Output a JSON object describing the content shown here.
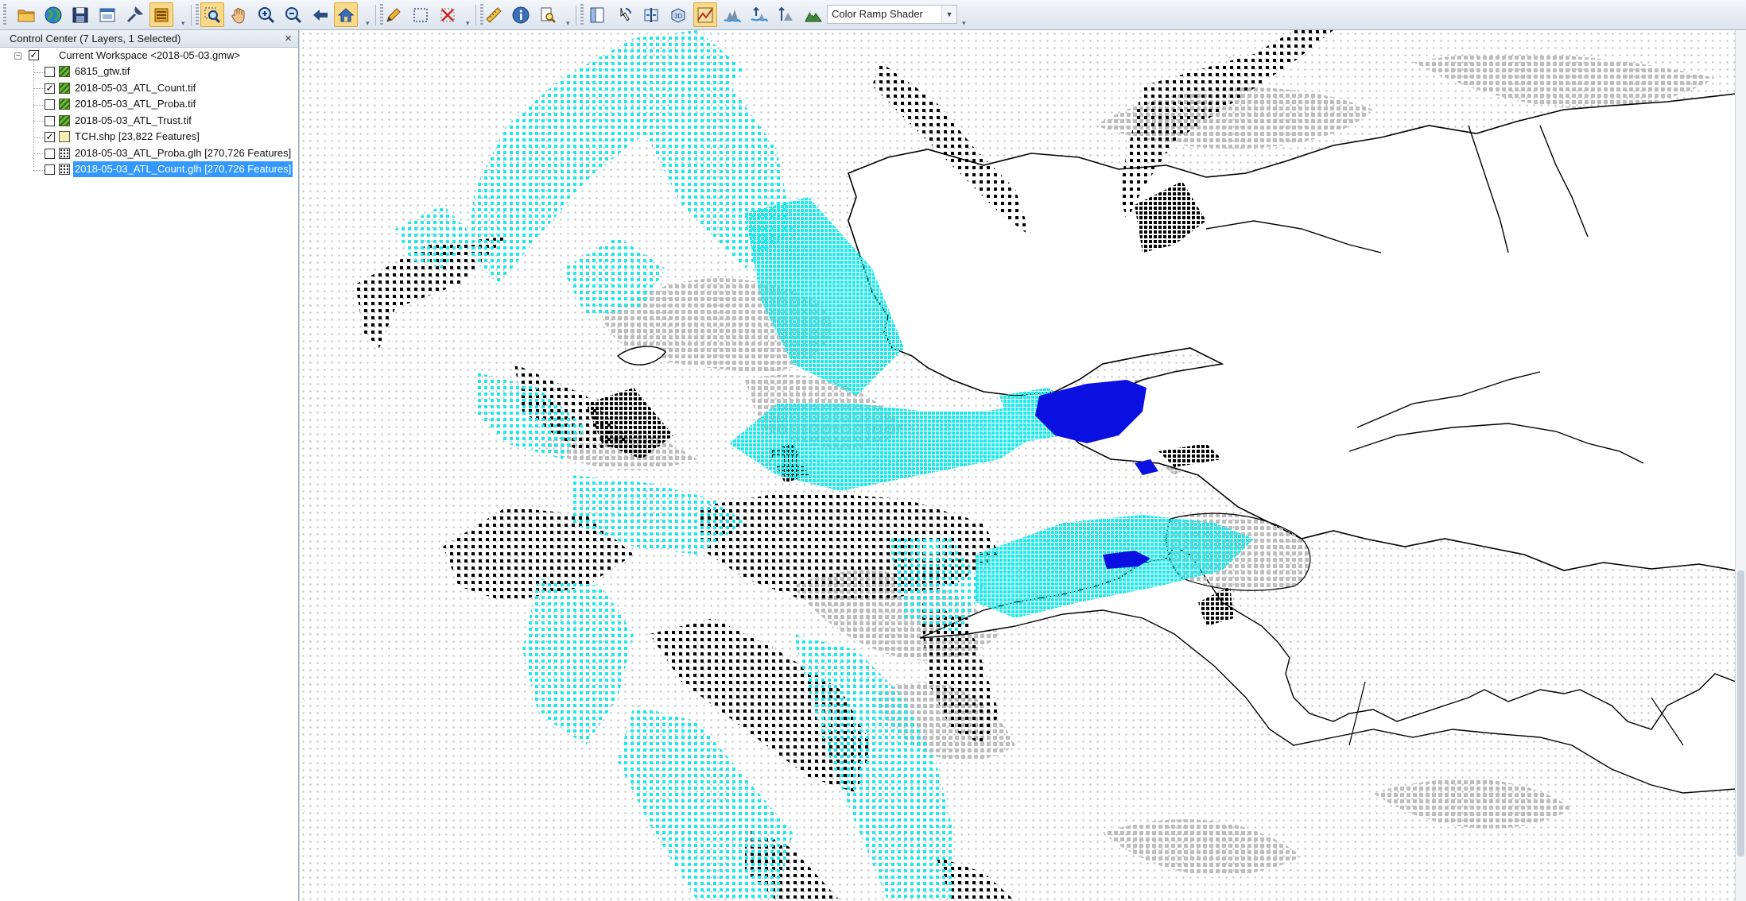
{
  "toolbar": {
    "shader_value": "Color Ramp Shader",
    "buttons": [
      {
        "icon": "open-folder-icon",
        "tip": ""
      },
      {
        "icon": "globe-icon",
        "tip": ""
      },
      {
        "icon": "save-icon",
        "tip": ""
      },
      {
        "icon": "window-icon",
        "tip": ""
      },
      {
        "icon": "wrench-icon",
        "tip": ""
      },
      {
        "icon": "layers-icon",
        "tip": ""
      },
      {
        "icon": "zoom-box-icon",
        "tip": ""
      },
      {
        "icon": "pan-hand-icon",
        "tip": ""
      },
      {
        "icon": "zoom-in-icon",
        "tip": ""
      },
      {
        "icon": "zoom-out-icon",
        "tip": ""
      },
      {
        "icon": "back-arrow-icon",
        "tip": ""
      },
      {
        "icon": "home-icon",
        "tip": ""
      },
      {
        "icon": "pencil-icon",
        "tip": ""
      },
      {
        "icon": "select-rect-icon",
        "tip": ""
      },
      {
        "icon": "delete-x-icon",
        "tip": ""
      },
      {
        "icon": "ruler-icon",
        "tip": ""
      },
      {
        "icon": "info-icon",
        "tip": ""
      },
      {
        "icon": "search-page-icon",
        "tip": ""
      },
      {
        "icon": "panel-icon",
        "tip": ""
      },
      {
        "icon": "hand-pointer-icon",
        "tip": ""
      },
      {
        "icon": "split-view-icon",
        "tip": ""
      },
      {
        "icon": "3d-view-icon",
        "tip": ""
      },
      {
        "icon": "path-profile-icon",
        "tip": ""
      },
      {
        "icon": "water-icon",
        "tip": ""
      },
      {
        "icon": "water-rise-icon",
        "tip": ""
      },
      {
        "icon": "viewshed-icon",
        "tip": ""
      },
      {
        "icon": "terrain-icon",
        "tip": ""
      }
    ]
  },
  "control_center": {
    "title": "Control Center (7 Layers, 1 Selected)",
    "close_glyph": "×",
    "workspace": {
      "label": "Current Workspace <2018-05-03.gmw>",
      "checked": true
    },
    "layers": [
      {
        "name": "6815_gtw.tif",
        "checked": false,
        "type": "raster",
        "selected": false
      },
      {
        "name": "2018-05-03_ATL_Count.tif",
        "checked": true,
        "type": "raster",
        "selected": false
      },
      {
        "name": "2018-05-03_ATL_Proba.tif",
        "checked": false,
        "type": "raster",
        "selected": false
      },
      {
        "name": "2018-05-03_ATL_Trust.tif",
        "checked": false,
        "type": "raster",
        "selected": false
      },
      {
        "name": "TCH.shp [23,822 Features]",
        "checked": true,
        "type": "vector",
        "selected": false
      },
      {
        "name": "2018-05-03_ATL_Proba.glh [270,726 Features]",
        "checked": false,
        "type": "glh",
        "selected": false
      },
      {
        "name": "2018-05-03_ATL_Count.glh [270,726 Features]",
        "checked": false,
        "type": "glh",
        "selected": true
      }
    ]
  },
  "map": {
    "colors": {
      "background": "#ffffff",
      "sparse_dots": "#c6c6c6",
      "land_fill": "#ffffff",
      "coast_line": "#000000",
      "grey_cells": "#bdbdbd",
      "black_cells": "#000000",
      "cyan_cells": "#1ee8e8",
      "blue_cells": "#0a10e0"
    }
  }
}
